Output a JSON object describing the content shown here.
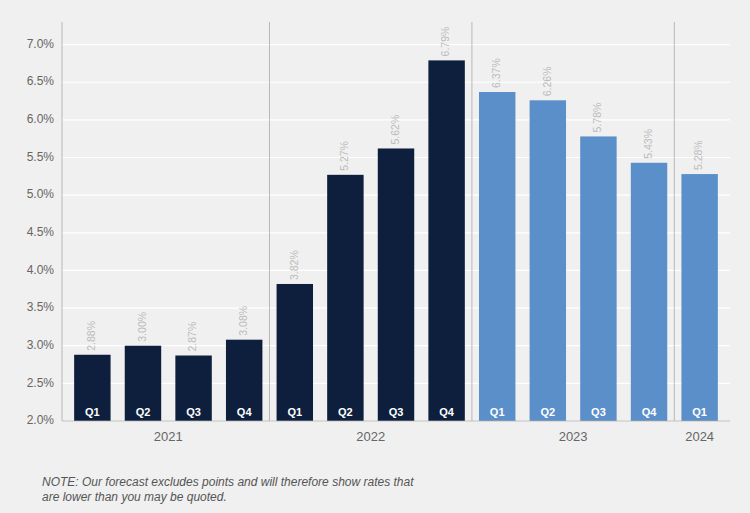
{
  "chart_data": {
    "type": "bar",
    "categories": [
      "Q1",
      "Q2",
      "Q3",
      "Q4",
      "Q1",
      "Q2",
      "Q3",
      "Q4",
      "Q1",
      "Q2",
      "Q3",
      "Q4",
      "Q1"
    ],
    "groups": [
      "2021",
      "2021",
      "2021",
      "2021",
      "2022",
      "2022",
      "2022",
      "2022",
      "2023",
      "2023",
      "2023",
      "2023",
      "2024"
    ],
    "values": [
      2.88,
      3.0,
      2.87,
      3.08,
      3.82,
      5.27,
      5.62,
      6.79,
      6.37,
      6.26,
      5.78,
      5.43,
      5.28
    ],
    "value_labels": [
      "2.88%",
      "3.00%",
      "2.87%",
      "3.08%",
      "3.82%",
      "5.27%",
      "5.62%",
      "6.79%",
      "6.37%",
      "6.26%",
      "5.78%",
      "5.43%",
      "5.28%"
    ],
    "data_labels": true,
    "colors": [
      "#0d1f3c",
      "#0d1f3c",
      "#0d1f3c",
      "#0d1f3c",
      "#0d1f3c",
      "#0d1f3c",
      "#0d1f3c",
      "#0d1f3c",
      "#5b8fc9",
      "#5b8fc9",
      "#5b8fc9",
      "#5b8fc9",
      "#5b8fc9"
    ],
    "ylim": [
      2.0,
      7.3
    ],
    "yticks": [
      {
        "value": 2.0,
        "label": "2.0%"
      },
      {
        "value": 2.5,
        "label": "2.5%"
      },
      {
        "value": 3.0,
        "label": "3.0%"
      },
      {
        "value": 3.5,
        "label": "3.5%"
      },
      {
        "value": 4.0,
        "label": "4.0%"
      },
      {
        "value": 4.5,
        "label": "4.5%"
      },
      {
        "value": 5.0,
        "label": "5.0%"
      },
      {
        "value": 5.5,
        "label": "5.5%"
      },
      {
        "value": 6.0,
        "label": "6.0%"
      },
      {
        "value": 6.5,
        "label": "6.5%"
      },
      {
        "value": 7.0,
        "label": "7.0%"
      }
    ],
    "grid": true,
    "annotations": [
      "NOTE: Our forecast excludes points and will therefore show rates that\nare lower than you may be quoted."
    ]
  }
}
